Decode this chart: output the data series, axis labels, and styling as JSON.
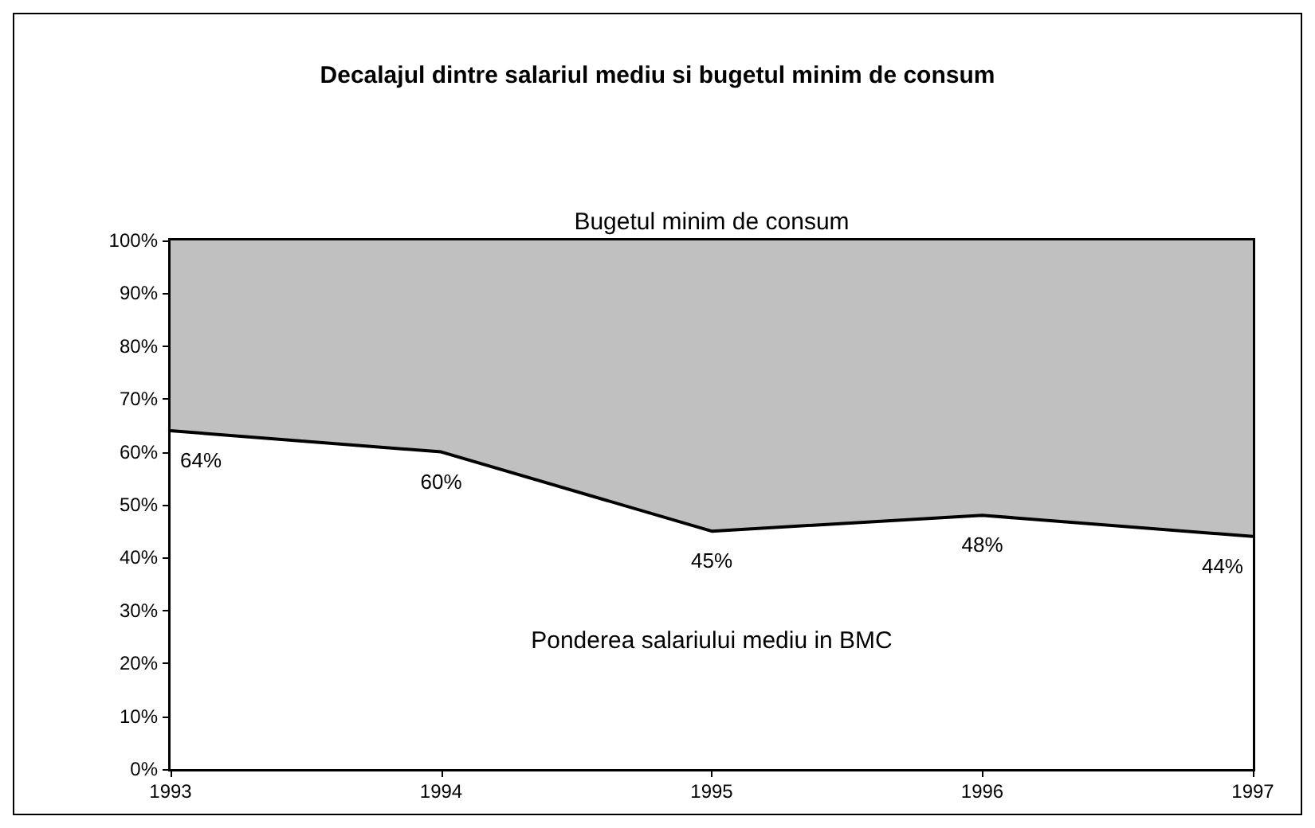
{
  "chart_data": {
    "type": "area",
    "stacked": true,
    "title": "Decalajul dintre salariul mediu si bugetul minim de consum",
    "x": [
      1993,
      1994,
      1995,
      1996,
      1997
    ],
    "xlim": [
      1993,
      1997
    ],
    "xticks": [
      1993,
      1994,
      1995,
      1996,
      1997
    ],
    "ylim": [
      0,
      100
    ],
    "yticks": [
      {
        "value": 0,
        "label": "0%"
      },
      {
        "value": 10,
        "label": "10%"
      },
      {
        "value": 20,
        "label": "20%"
      },
      {
        "value": 30,
        "label": "30%"
      },
      {
        "value": 40,
        "label": "40%"
      },
      {
        "value": 50,
        "label": "50%"
      },
      {
        "value": 60,
        "label": "60%"
      },
      {
        "value": 70,
        "label": "70%"
      },
      {
        "value": 80,
        "label": "80%"
      },
      {
        "value": 90,
        "label": "90%"
      },
      {
        "value": 100,
        "label": "100%"
      }
    ],
    "series": [
      {
        "name": "Ponderea salariului mediu in BMC",
        "color": "#ffffff",
        "values": [
          64,
          60,
          45,
          48,
          44
        ],
        "value_labels": [
          "64%",
          "60%",
          "45%",
          "48%",
          "44%"
        ]
      },
      {
        "name": "Bugetul minim de consum",
        "color": "#c0c0c0",
        "values": [
          36,
          40,
          55,
          52,
          56
        ]
      }
    ],
    "grid": false,
    "legend": false
  }
}
